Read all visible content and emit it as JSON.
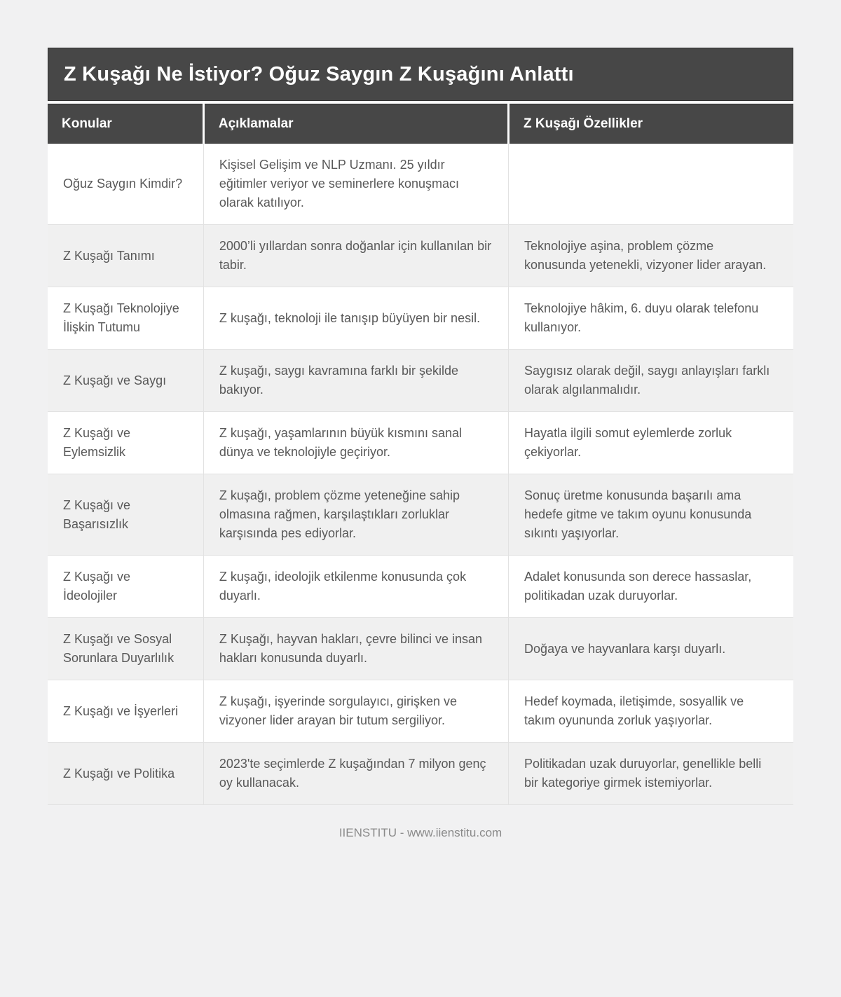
{
  "page": {
    "title": "Z Kuşağı Ne İstiyor? Oğuz Saygın Z Kuşağını Anlattı",
    "footer_credit": "IIENSTITU - www.iienstitu.com"
  },
  "table": {
    "columns": [
      "Konular",
      "Açıklamalar",
      "Z Kuşağı Özellikler"
    ],
    "rows": [
      {
        "topic": "Oğuz Saygın Kimdir?",
        "description": "Kişisel Gelişim ve NLP Uzmanı. 25 yıldır eğitimler veriyor ve seminerlere konuşmacı olarak katılıyor.",
        "features": ""
      },
      {
        "topic": "Z Kuşağı Tanımı",
        "description": "2000’li yıllardan sonra doğanlar için kullanılan bir tabir.",
        "features": "Teknolojiye aşina, problem çözme konusunda yetenekli, vizyoner lider arayan."
      },
      {
        "topic": "Z Kuşağı Teknolojiye İlişkin Tutumu",
        "description": "Z kuşağı, teknoloji ile tanışıp büyüyen bir nesil.",
        "features": "Teknolojiye hâkim, 6. duyu olarak telefonu kullanıyor."
      },
      {
        "topic": "Z Kuşağı ve Saygı",
        "description": "Z kuşağı, saygı kavramına farklı bir şekilde bakıyor.",
        "features": "Saygısız olarak değil, saygı anlayışları farklı olarak algılanmalıdır."
      },
      {
        "topic": "Z Kuşağı ve Eylemsizlik",
        "description": "Z kuşağı, yaşamlarının büyük kısmını sanal dünya ve teknolojiyle geçiriyor.",
        "features": "Hayatla ilgili somut eylemlerde zorluk çekiyorlar."
      },
      {
        "topic": "Z Kuşağı ve Başarısızlık",
        "description": "Z kuşağı, problem çözme yeteneğine sahip olmasına rağmen, karşılaştıkları zorluklar karşısında pes ediyorlar.",
        "features": "Sonuç üretme konusunda başarılı ama hedefe gitme ve takım oyunu konusunda sıkıntı yaşıyorlar."
      },
      {
        "topic": "Z Kuşağı ve İdeolojiler",
        "description": "Z kuşağı, ideolojik etkilenme konusunda çok duyarlı.",
        "features": "Adalet konusunda son derece hassaslar, politikadan uzak duruyorlar."
      },
      {
        "topic": "Z Kuşağı ve Sosyal Sorunlara Duyarlılık",
        "description": "Z Kuşağı, hayvan hakları, çevre bilinci ve insan hakları konusunda duyarlı.",
        "features": "Doğaya ve hayvanlara karşı duyarlı."
      },
      {
        "topic": "Z Kuşağı ve İşyerleri",
        "description": "Z kuşağı, işyerinde sorgulayıcı, girişken ve vizyoner lider arayan bir tutum sergiliyor.",
        "features": "Hedef koymada, iletişimde, sosyallik ve takım oyununda zorluk yaşıyorlar."
      },
      {
        "topic": "Z Kuşağı ve Politika",
        "description": "2023'te seçimlerde Z kuşağından 7 milyon genç oy kullanacak.",
        "features": "Politikadan uzak duruyorlar, genellikle belli bir kategoriye girmek istemiyorlar."
      }
    ]
  },
  "colors": {
    "page_bg": "#f1f1f2",
    "header_bg": "#474747",
    "header_text": "#ffffff",
    "body_text": "#595959",
    "row_alt_bg": "#f0f0f0",
    "border": "#e2e2e2",
    "footer_text": "#8a8a8a"
  }
}
